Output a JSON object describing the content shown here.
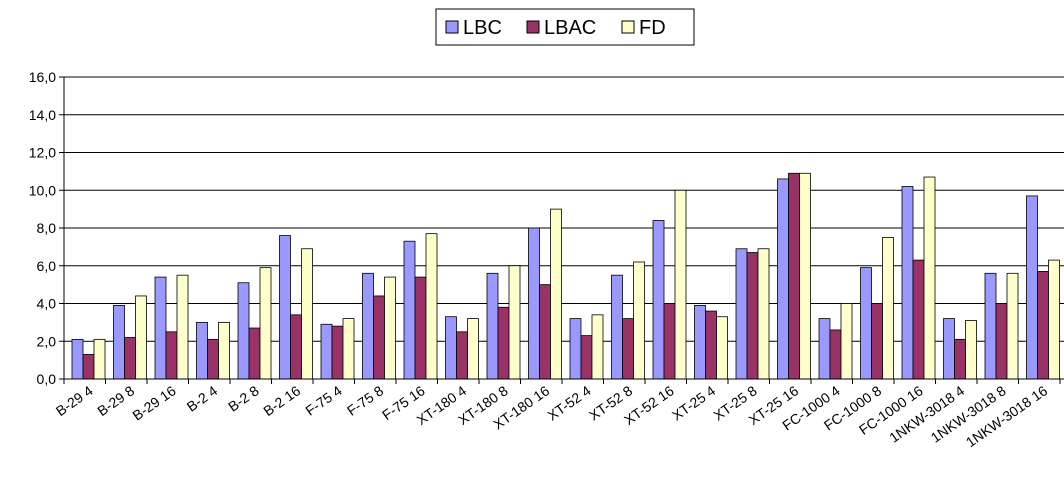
{
  "chart_data": {
    "type": "bar",
    "title": "",
    "xlabel": "",
    "ylabel": "",
    "ylim": [
      0,
      16
    ],
    "yticks": [
      "0,0",
      "2,0",
      "4,0",
      "6,0",
      "8,0",
      "10,0",
      "12,0",
      "14,0",
      "16,0"
    ],
    "grid": true,
    "legend_position": "top-center",
    "categories": [
      "B-29 4",
      "B-29 8",
      "B-29 16",
      "B-2 4",
      "B-2 8",
      "B-2 16",
      "F-75  4",
      "F-75  8",
      "F-75 16",
      "XT-180 4",
      "XT-180 8",
      "XT-180 16",
      "XT-52 4",
      "XT-52 8",
      "XT-52 16",
      "XT-25 4",
      "XT-25 8",
      "XT-25 16",
      "FC-1000  4",
      "FC-1000  8",
      "FC-1000  16",
      "1NKW-3018 4",
      "1NKW-3018 8",
      "1NKW-3018 16"
    ],
    "series": [
      {
        "name": "LBC",
        "color": "#9999ff",
        "values": [
          2.1,
          3.9,
          5.4,
          3.0,
          5.1,
          7.6,
          2.9,
          5.6,
          7.3,
          3.3,
          5.6,
          8.0,
          3.2,
          5.5,
          8.4,
          3.9,
          6.9,
          10.6,
          3.2,
          5.9,
          10.2,
          3.2,
          5.6,
          9.7
        ]
      },
      {
        "name": "LBAC",
        "color": "#993366",
        "values": [
          1.3,
          2.2,
          2.5,
          2.1,
          2.7,
          3.4,
          2.8,
          4.4,
          5.4,
          2.5,
          3.8,
          5.0,
          2.3,
          3.2,
          4.0,
          3.6,
          6.7,
          10.9,
          2.6,
          4.0,
          6.3,
          2.1,
          4.0,
          5.7
        ]
      },
      {
        "name": "FD",
        "color": "#ffffcc",
        "values": [
          2.1,
          4.4,
          5.5,
          3.0,
          5.9,
          6.9,
          3.2,
          5.4,
          7.7,
          3.2,
          6.0,
          9.0,
          3.4,
          6.2,
          10.0,
          3.3,
          6.9,
          10.9,
          4.0,
          7.5,
          10.7,
          3.1,
          5.6,
          6.3
        ]
      }
    ]
  }
}
